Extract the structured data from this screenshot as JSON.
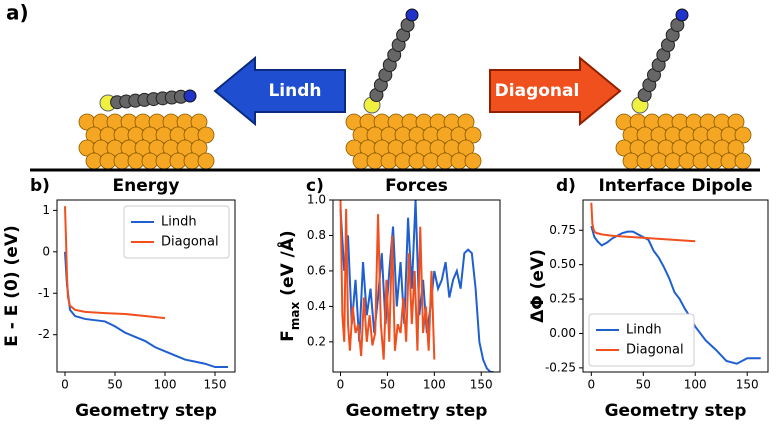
{
  "panel_a": {
    "label": "a)",
    "left_arrow": "Lindh",
    "right_arrow": "Diagonal"
  },
  "chart_data": [
    {
      "type": "line",
      "panel_label": "b)",
      "title": "Energy",
      "xlabel": "Geometry step",
      "ylabel": "E - E (0) (eV)",
      "xlim": [
        -8,
        170
      ],
      "ylim": [
        -2.9,
        1.25
      ],
      "xticks": [
        0,
        50,
        100,
        150
      ],
      "yticks": [
        -2,
        -1,
        0,
        1
      ],
      "legend": "upper right",
      "series": [
        {
          "name": "Lindh",
          "color": "#1f5fcf",
          "x": [
            0,
            2,
            5,
            10,
            20,
            30,
            40,
            50,
            60,
            70,
            80,
            90,
            100,
            110,
            120,
            130,
            140,
            150,
            163
          ],
          "values": [
            0,
            -0.8,
            -1.4,
            -1.55,
            -1.62,
            -1.65,
            -1.68,
            -1.8,
            -1.95,
            -2.05,
            -2.15,
            -2.3,
            -2.4,
            -2.5,
            -2.6,
            -2.65,
            -2.7,
            -2.78,
            -2.78
          ]
        },
        {
          "name": "Diagonal",
          "color": "#f0501e",
          "x": [
            0,
            1,
            2,
            3,
            5,
            10,
            20,
            40,
            60,
            80,
            100
          ],
          "values": [
            1.1,
            0.3,
            -0.6,
            -1.1,
            -1.3,
            -1.4,
            -1.45,
            -1.48,
            -1.5,
            -1.55,
            -1.6
          ]
        }
      ]
    },
    {
      "type": "line",
      "panel_label": "c)",
      "title": "Forces",
      "xlabel": "Geometry step",
      "ylabel_symbol": "F",
      "ylabel_subscript": "max",
      "ylabel_unit": "(eV /Å)",
      "xlim": [
        -8,
        170
      ],
      "ylim": [
        0.03,
        1.0
      ],
      "xticks": [
        0,
        50,
        100,
        150
      ],
      "yticks": [
        0.2,
        0.4,
        0.6,
        0.8,
        {
          "value": 1,
          "label": "1.0"
        }
      ],
      "series": [
        {
          "name": "Lindh",
          "color": "#1f5fcf",
          "x": [
            0,
            4,
            8,
            12,
            16,
            20,
            24,
            28,
            32,
            36,
            40,
            44,
            48,
            52,
            56,
            60,
            64,
            68,
            72,
            76,
            80,
            84,
            88,
            92,
            96,
            100,
            104,
            108,
            112,
            116,
            120,
            124,
            128,
            132,
            136,
            140,
            144,
            148,
            152,
            156,
            160,
            163
          ],
          "values": [
            0.95,
            0.6,
            0.8,
            0.3,
            0.55,
            0.2,
            0.65,
            0.35,
            0.5,
            0.25,
            0.45,
            0.7,
            0.3,
            0.6,
            0.85,
            0.4,
            0.65,
            0.3,
            0.9,
            0.5,
            1.0,
            0.35,
            0.55,
            0.25,
            0.4,
            0.6,
            0.5,
            0.55,
            0.65,
            0.45,
            0.55,
            0.6,
            0.5,
            0.7,
            0.72,
            0.7,
            0.5,
            0.2,
            0.1,
            0.05,
            0.03,
            0.03
          ]
        },
        {
          "name": "Diagonal",
          "color": "#f0501e",
          "x": [
            0,
            2,
            4,
            6,
            8,
            10,
            13,
            16,
            19,
            22,
            25,
            28,
            31,
            34,
            37,
            40,
            43,
            46,
            49,
            52,
            55,
            58,
            61,
            64,
            67,
            70,
            73,
            76,
            79,
            82,
            85,
            88,
            91,
            94,
            97,
            100
          ],
          "values": [
            1.0,
            0.35,
            0.2,
            0.95,
            0.3,
            0.15,
            0.4,
            0.25,
            0.3,
            0.12,
            0.45,
            0.2,
            0.35,
            0.18,
            0.25,
            0.92,
            0.3,
            0.1,
            0.55,
            0.2,
            0.8,
            0.15,
            0.3,
            0.25,
            0.45,
            0.2,
            0.7,
            0.3,
            0.6,
            0.15,
            0.85,
            0.25,
            0.4,
            0.15,
            0.6,
            0.1
          ]
        }
      ]
    },
    {
      "type": "line",
      "panel_label": "d)",
      "title": "Interface Dipole",
      "xlabel": "Geometry step",
      "ylabel": "ΔΦ (eV)",
      "xlim": [
        -8,
        170
      ],
      "ylim": [
        -0.28,
        0.97
      ],
      "xticks": [
        0,
        50,
        100,
        150
      ],
      "yticks": [
        {
          "value": -0.25,
          "label": "-0.25"
        },
        {
          "value": 0,
          "label": "0.00"
        },
        {
          "value": 0.25,
          "label": "0.25"
        },
        {
          "value": 0.5,
          "label": "0.50"
        },
        {
          "value": 0.75,
          "label": "0.75"
        }
      ],
      "legend": "lower left",
      "series": [
        {
          "name": "Lindh",
          "color": "#1f5fcf",
          "x": [
            0,
            3,
            6,
            10,
            15,
            20,
            25,
            30,
            35,
            40,
            45,
            50,
            55,
            60,
            65,
            70,
            75,
            80,
            85,
            90,
            95,
            100,
            110,
            120,
            130,
            140,
            150,
            163
          ],
          "values": [
            0.78,
            0.7,
            0.67,
            0.64,
            0.66,
            0.69,
            0.71,
            0.73,
            0.74,
            0.74,
            0.72,
            0.7,
            0.68,
            0.6,
            0.55,
            0.48,
            0.4,
            0.3,
            0.25,
            0.18,
            0.12,
            0.05,
            -0.05,
            -0.12,
            -0.2,
            -0.22,
            -0.18,
            -0.18
          ]
        },
        {
          "name": "Diagonal",
          "color": "#f0501e",
          "x": [
            0,
            1,
            2,
            3,
            5,
            10,
            20,
            40,
            60,
            80,
            100
          ],
          "values": [
            0.95,
            0.8,
            0.76,
            0.74,
            0.73,
            0.72,
            0.71,
            0.7,
            0.69,
            0.68,
            0.67
          ]
        }
      ]
    }
  ]
}
